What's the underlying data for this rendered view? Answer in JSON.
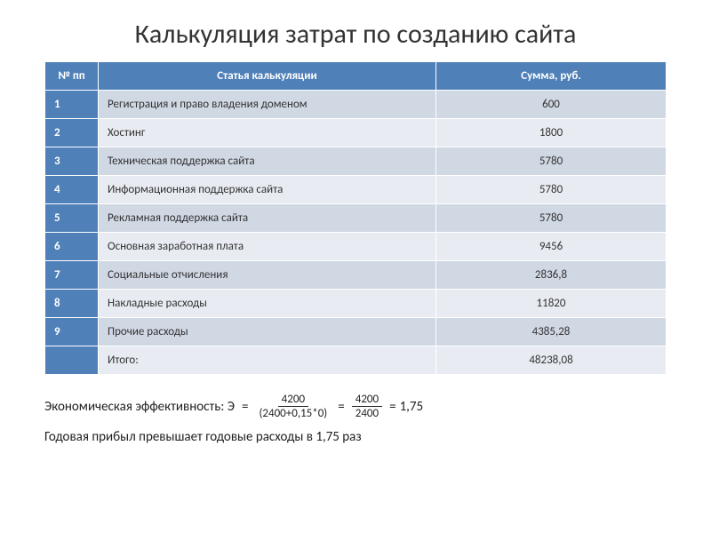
{
  "title": "Калькуляция затрат по созданию сайта",
  "table": {
    "headers": {
      "num": "№ пп",
      "article": "Статья калькуляции",
      "sum": "Сумма, руб."
    },
    "rows": [
      {
        "num": "1",
        "article": "Регистрация и право владения доменом",
        "sum": "600"
      },
      {
        "num": "2",
        "article": "Хостинг",
        "sum": "1800"
      },
      {
        "num": "3",
        "article": "Техническая поддержка сайта",
        "sum": "5780"
      },
      {
        "num": "4",
        "article": "Информационная поддержка сайта",
        "sum": "5780"
      },
      {
        "num": "5",
        "article": "Рекламная поддержка сайта",
        "sum": "5780"
      },
      {
        "num": "6",
        "article": "Основная заработная плата",
        "sum": "9456"
      },
      {
        "num": "7",
        "article": "Социальные отчисления",
        "sum": "2836,8"
      },
      {
        "num": "8",
        "article": "Накладные расходы",
        "sum": "11820"
      },
      {
        "num": "9",
        "article": "Прочие расходы",
        "sum": "4385,28"
      }
    ],
    "total": {
      "num": "",
      "article": "Итого:",
      "sum": "48238,08"
    }
  },
  "formula": {
    "label": "Экономическая эффективность: Э",
    "eq1": "=",
    "frac1_num": "4200",
    "frac1_den": "(2400+0,15*0)",
    "eq2": "=",
    "frac2_num": "4200",
    "frac2_den": "2400",
    "eq3": "=",
    "result": "1,75"
  },
  "conclusion": "Годовая прибыл превышает годовые расходы в 1,75 раз",
  "colors": {
    "header_bg": "#5080b8",
    "row_odd": "#d0d8e4",
    "row_even": "#e8ecf2",
    "text": "#333333",
    "header_text": "#ffffff"
  }
}
